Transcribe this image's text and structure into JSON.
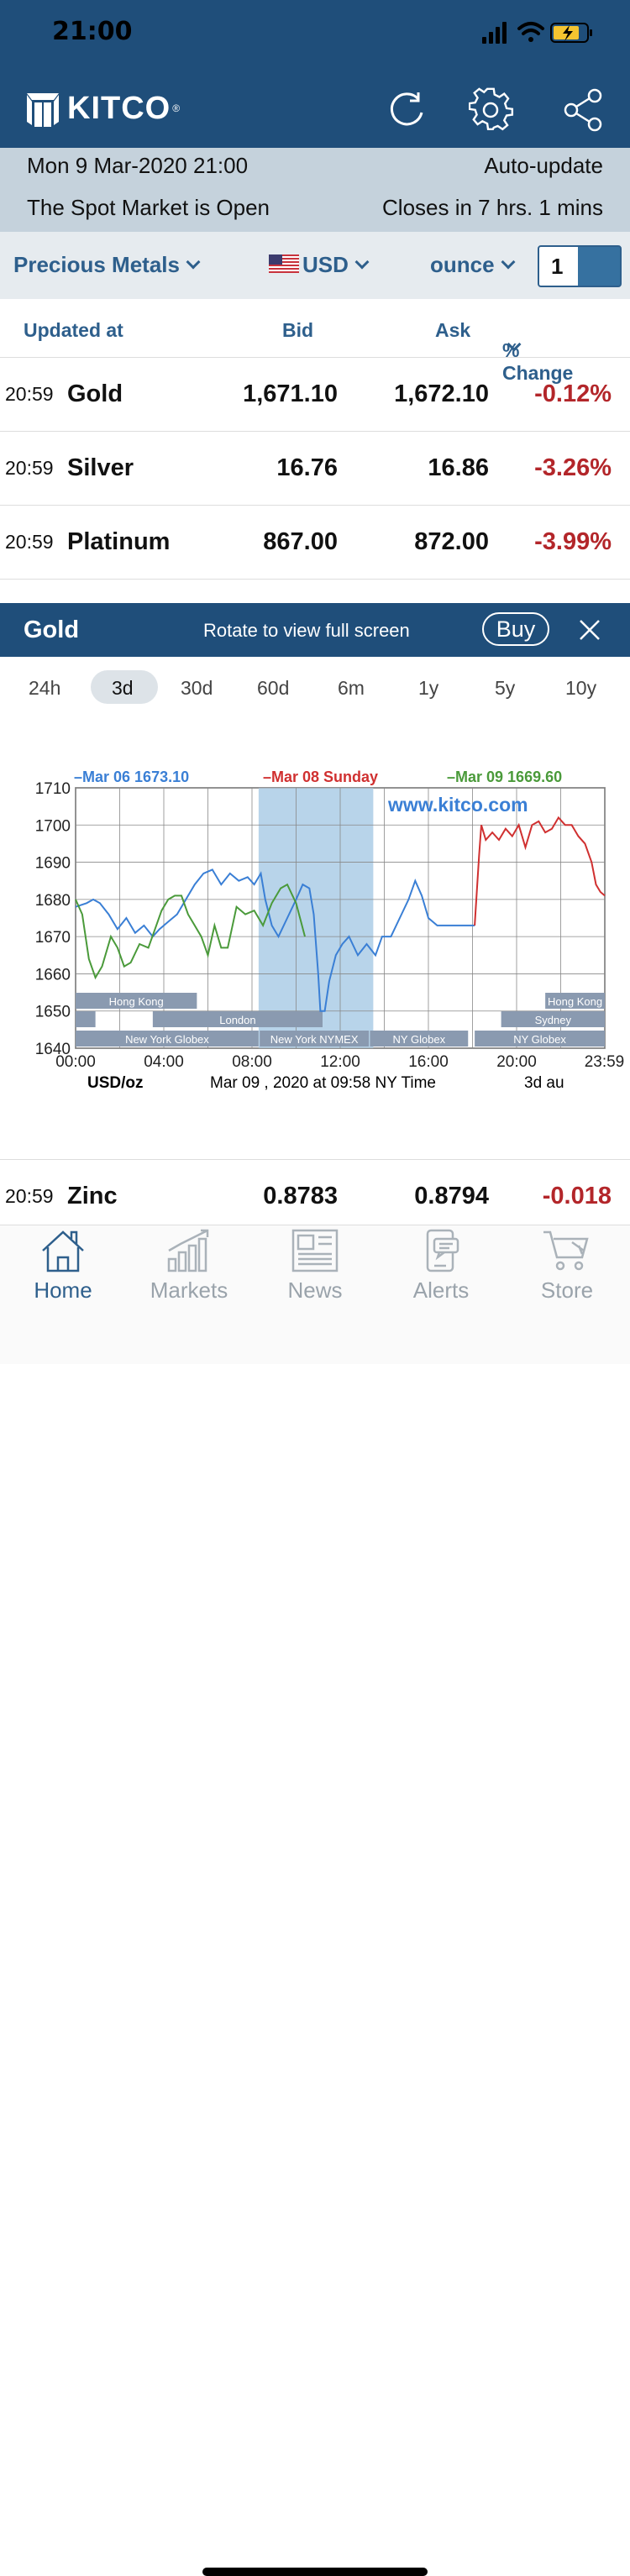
{
  "status": {
    "time": "21:00"
  },
  "header": {
    "brand": "KITCO",
    "reg": "®"
  },
  "info": {
    "datetime": "Mon 9 Mar-2020 21:00",
    "auto_update": "Auto-update",
    "market_status": "The Spot Market is Open",
    "closes_in": "Closes in 7 hrs. 1 mins"
  },
  "filters": {
    "category": "Precious Metals",
    "currency": "USD",
    "unit": "ounce",
    "quantity": "1"
  },
  "columns": {
    "updated": "Updated at",
    "bid": "Bid",
    "ask": "Ask",
    "change": "% Change"
  },
  "rows": [
    {
      "time": "20:59",
      "name": "Gold",
      "bid": "1,671.10",
      "ask": "1,672.10",
      "change": "-0.12%"
    },
    {
      "time": "20:59",
      "name": "Silver",
      "bid": "16.76",
      "ask": "16.86",
      "change": "-3.26%"
    },
    {
      "time": "20:59",
      "name": "Platinum",
      "bid": "867.00",
      "ask": "872.00",
      "change": "-3.99%"
    },
    {
      "time": "20:59",
      "name": "Zinc",
      "bid": "0.8783",
      "ask": "0.8794",
      "change": "-0.018"
    }
  ],
  "gold_panel": {
    "title": "Gold",
    "hint": "Rotate to view full screen",
    "buy": "Buy"
  },
  "ranges": [
    "24h",
    "3d",
    "30d",
    "60d",
    "6m",
    "1y",
    "5y",
    "10y"
  ],
  "selected_range": "3d",
  "chart_data": {
    "type": "line",
    "legend": [
      {
        "label": "Mar 06",
        "value": "1673.10",
        "color": "#3a7fd5"
      },
      {
        "label": "Mar 08",
        "value": "Sunday",
        "color": "#d03030"
      },
      {
        "label": "Mar 09",
        "value": "1669.60",
        "color": "#4a9a3a"
      }
    ],
    "watermark": "www.kitco.com",
    "ylim": [
      1640,
      1710
    ],
    "yticks": [
      1710,
      1700,
      1690,
      1680,
      1670,
      1660,
      1650,
      1640
    ],
    "xticks": [
      "00:00",
      "04:00",
      "08:00",
      "12:00",
      "16:00",
      "20:00",
      "23:59"
    ],
    "unit_label": "USD/oz",
    "timestamp": "Mar 09 , 2020 at 09:58 NY Time",
    "period_note": "3d au",
    "x_range_hours": [
      0,
      24
    ],
    "highlight_hours": [
      8.3,
      13.5
    ],
    "sessions": [
      "Hong Kong",
      "London",
      "New York Globex",
      "New York NYMEX",
      "NY Globex",
      "Hong Kong",
      "Sydney",
      "NY Globex"
    ],
    "series": [
      {
        "name": "Mar 06",
        "color": "#3a7fd5",
        "points": [
          [
            0,
            1678
          ],
          [
            0.5,
            1679
          ],
          [
            0.8,
            1680
          ],
          [
            1.1,
            1679
          ],
          [
            1.5,
            1676
          ],
          [
            1.9,
            1672
          ],
          [
            2.3,
            1675
          ],
          [
            2.7,
            1671
          ],
          [
            3.1,
            1673
          ],
          [
            3.5,
            1670
          ],
          [
            3.8,
            1672
          ],
          [
            4.2,
            1674
          ],
          [
            4.6,
            1676
          ],
          [
            5,
            1680
          ],
          [
            5.4,
            1684
          ],
          [
            5.8,
            1687
          ],
          [
            6.2,
            1688
          ],
          [
            6.6,
            1684
          ],
          [
            7,
            1687
          ],
          [
            7.4,
            1685
          ],
          [
            7.8,
            1686
          ],
          [
            8.1,
            1684
          ],
          [
            8.4,
            1687
          ],
          [
            8.6,
            1680
          ],
          [
            8.9,
            1673
          ],
          [
            9.2,
            1670
          ],
          [
            9.6,
            1675
          ],
          [
            10,
            1680
          ],
          [
            10.3,
            1684
          ],
          [
            10.6,
            1683
          ],
          [
            10.8,
            1676
          ],
          [
            11,
            1660
          ],
          [
            11.1,
            1650
          ],
          [
            11.3,
            1650
          ],
          [
            11.5,
            1658
          ],
          [
            11.8,
            1665
          ],
          [
            12.1,
            1668
          ],
          [
            12.4,
            1670
          ],
          [
            12.8,
            1665
          ],
          [
            13.2,
            1668
          ],
          [
            13.6,
            1665
          ],
          [
            13.9,
            1670
          ],
          [
            14.3,
            1670
          ],
          [
            14.7,
            1675
          ],
          [
            15.1,
            1680
          ],
          [
            15.4,
            1685
          ],
          [
            15.7,
            1681
          ],
          [
            16,
            1675
          ],
          [
            16.4,
            1673
          ],
          [
            16.8,
            1673
          ],
          [
            17.2,
            1673
          ],
          [
            17.6,
            1673
          ],
          [
            18.1,
            1673
          ]
        ]
      },
      {
        "name": "Mar 08",
        "color": "#d03030",
        "points": [
          [
            18.1,
            1673
          ],
          [
            18.3,
            1692
          ],
          [
            18.4,
            1700
          ],
          [
            18.6,
            1696
          ],
          [
            18.9,
            1698
          ],
          [
            19.2,
            1696
          ],
          [
            19.5,
            1699
          ],
          [
            19.8,
            1697
          ],
          [
            20.1,
            1700
          ],
          [
            20.4,
            1694
          ],
          [
            20.7,
            1700
          ],
          [
            21,
            1701
          ],
          [
            21.3,
            1698
          ],
          [
            21.6,
            1699
          ],
          [
            21.9,
            1702
          ],
          [
            22.2,
            1700
          ],
          [
            22.5,
            1700
          ],
          [
            22.8,
            1697
          ],
          [
            23.1,
            1695
          ],
          [
            23.4,
            1690
          ],
          [
            23.6,
            1684
          ],
          [
            23.8,
            1682
          ],
          [
            24,
            1681
          ]
        ]
      },
      {
        "name": "Mar 09",
        "color": "#4a9a3a",
        "points": [
          [
            0,
            1680
          ],
          [
            0.3,
            1676
          ],
          [
            0.6,
            1664
          ],
          [
            0.9,
            1659
          ],
          [
            1.2,
            1662
          ],
          [
            1.6,
            1670
          ],
          [
            1.9,
            1667
          ],
          [
            2.2,
            1662
          ],
          [
            2.5,
            1663
          ],
          [
            2.9,
            1668
          ],
          [
            3.3,
            1667
          ],
          [
            3.6,
            1672
          ],
          [
            3.9,
            1677
          ],
          [
            4.2,
            1680
          ],
          [
            4.5,
            1681
          ],
          [
            4.8,
            1681
          ],
          [
            5.1,
            1676
          ],
          [
            5.4,
            1673
          ],
          [
            5.7,
            1670
          ],
          [
            6,
            1665
          ],
          [
            6.3,
            1673
          ],
          [
            6.6,
            1667
          ],
          [
            6.9,
            1667
          ],
          [
            7.3,
            1678
          ],
          [
            7.7,
            1676
          ],
          [
            8.1,
            1677
          ],
          [
            8.5,
            1673
          ],
          [
            8.9,
            1679
          ],
          [
            9.3,
            1683
          ],
          [
            9.6,
            1684
          ],
          [
            10,
            1679
          ],
          [
            10.4,
            1670
          ]
        ]
      }
    ]
  },
  "tabs": [
    {
      "label": "Home",
      "icon": "home-icon",
      "active": true
    },
    {
      "label": "Markets",
      "icon": "markets-icon",
      "active": false
    },
    {
      "label": "News",
      "icon": "news-icon",
      "active": false
    },
    {
      "label": "Alerts",
      "icon": "alerts-icon",
      "active": false
    },
    {
      "label": "Store",
      "icon": "store-icon",
      "active": false
    }
  ],
  "colors": {
    "brand": "#1f4e7a",
    "accent": "#2e5f8c",
    "negative": "#b3262a"
  }
}
